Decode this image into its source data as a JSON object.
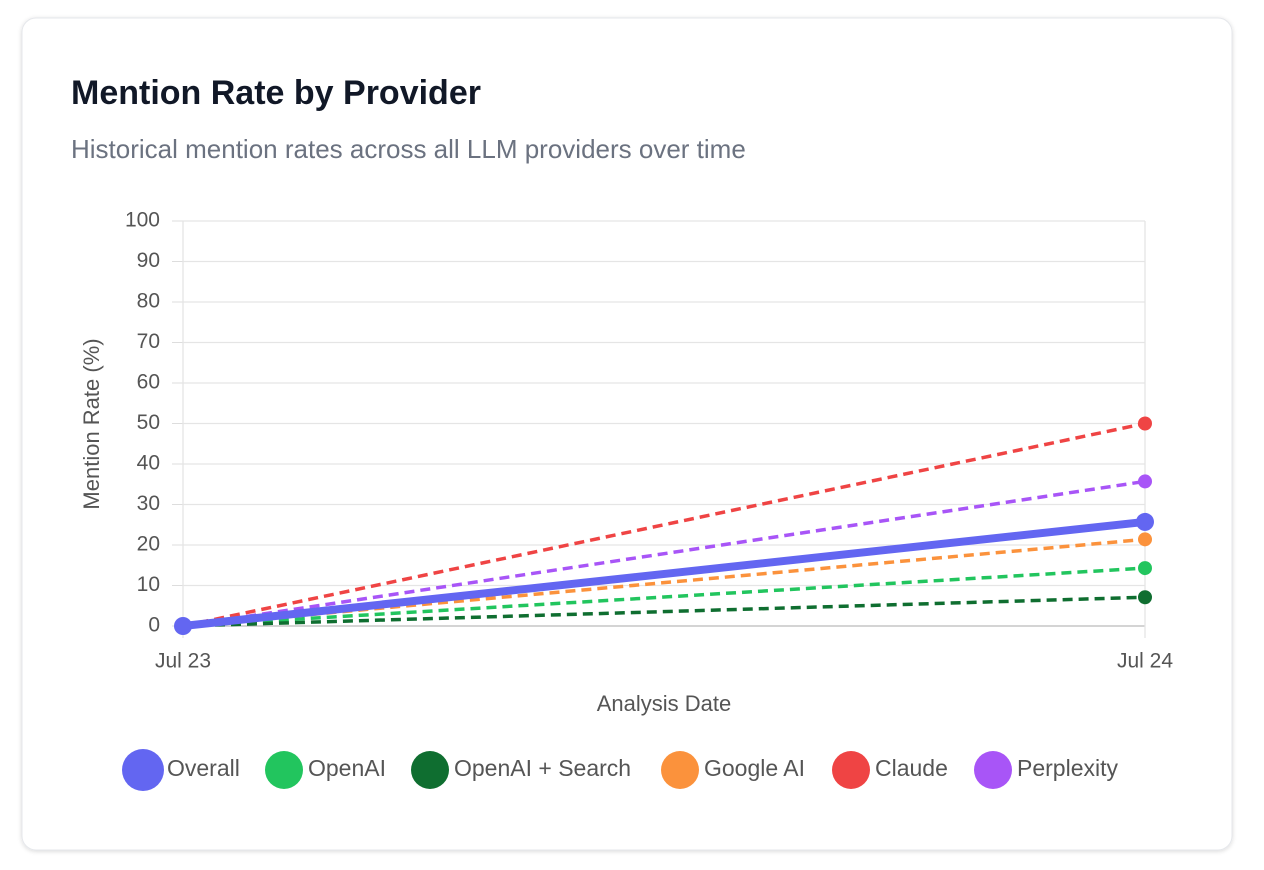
{
  "chart_data": {
    "type": "line",
    "title": "Mention Rate by Provider",
    "subtitle": "Historical mention rates across all LLM providers over time",
    "x_label": "Analysis Date",
    "y_label": "Mention Rate (%)",
    "categories": [
      "Jul 23",
      "Jul 24"
    ],
    "ylim": [
      0,
      100
    ],
    "yticks": [
      0,
      10,
      20,
      30,
      40,
      50,
      60,
      70,
      80,
      90,
      100
    ],
    "grid": true,
    "legend": "bottom",
    "series": [
      {
        "name": "Overall",
        "color": "#6366f1",
        "line_style": "solid",
        "values": [
          0,
          25.7
        ]
      },
      {
        "name": "OpenAI",
        "color": "#22c55e",
        "line_style": "dashed",
        "values": [
          0,
          14.3
        ]
      },
      {
        "name": "OpenAI + Search",
        "color": "#0f6e30",
        "line_style": "dashed",
        "values": [
          0,
          7.1
        ]
      },
      {
        "name": "Google AI",
        "color": "#fb923c",
        "line_style": "dashed",
        "values": [
          0,
          21.4
        ]
      },
      {
        "name": "Claude",
        "color": "#ef4444",
        "line_style": "dashed",
        "values": [
          0,
          50
        ]
      },
      {
        "name": "Perplexity",
        "color": "#a855f7",
        "line_style": "dashed",
        "values": [
          0,
          35.7
        ]
      }
    ]
  }
}
